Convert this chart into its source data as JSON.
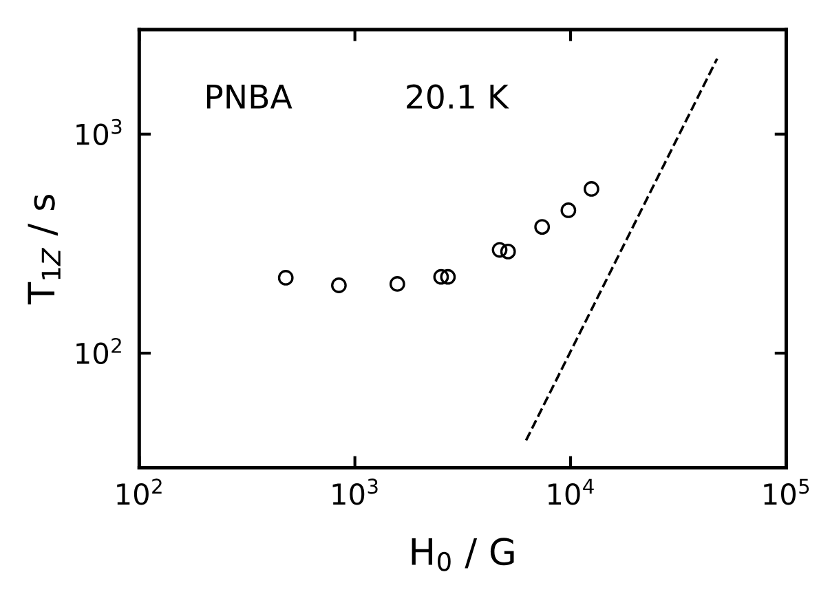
{
  "chart_data": {
    "type": "scatter",
    "xlabel": "H$_{0}$ / G",
    "ylabel": "T$_{1Z}$ / s",
    "annotations": [
      "PNBA",
      "20.1 K"
    ],
    "log": "xy",
    "marker": "circle",
    "xlim": [
      100,
      100000
    ],
    "ylim": [
      30,
      3000
    ],
    "xticks": [
      {
        "value": 100,
        "label": "10$^{2}$"
      },
      {
        "value": 1000,
        "label": "10$^{3}$"
      },
      {
        "value": 10000,
        "label": "10$^{4}$"
      },
      {
        "value": 100000,
        "label": "10$^{5}$"
      }
    ],
    "yticks": [
      {
        "value": 100,
        "label": "10$^{2}$"
      },
      {
        "value": 1000,
        "label": "10$^{3}$"
      }
    ],
    "series": [
      {
        "color": "#000000",
        "x": [
          478,
          843,
          1573,
          2510,
          2700,
          4690,
          5130,
          7380,
          9770,
          12500
        ],
        "values": [
          221,
          204,
          207,
          223,
          223,
          296,
          291,
          377,
          449,
          562
        ]
      },
      {
        "type": "line",
        "color": "#000000",
        "line_style": "dashed",
        "marker": "none",
        "x": [
          6220,
          47800
        ],
        "values": [
          40,
          2210
        ]
      }
    ]
  }
}
